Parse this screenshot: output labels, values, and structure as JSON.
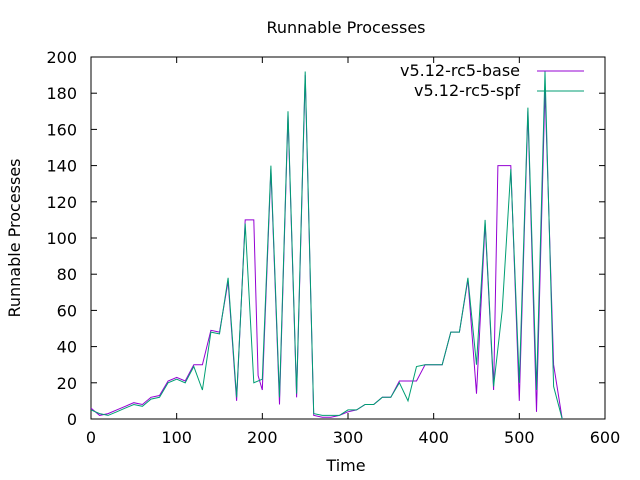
{
  "chart_data": {
    "type": "line",
    "title": "Runnable Processes",
    "xlabel": "Time",
    "ylabel": "Runnable Processes",
    "xlim": [
      0,
      600
    ],
    "ylim": [
      0,
      200
    ],
    "xticks": [
      0,
      100,
      200,
      300,
      400,
      500,
      600
    ],
    "yticks": [
      0,
      20,
      40,
      60,
      80,
      100,
      120,
      140,
      160,
      180,
      200
    ],
    "grid": false,
    "legend_position": "top-right",
    "series": [
      {
        "name": "v5.12-rc5-base",
        "color": "#9400d3",
        "points": [
          [
            0,
            6
          ],
          [
            10,
            2
          ],
          [
            20,
            3
          ],
          [
            30,
            5
          ],
          [
            40,
            7
          ],
          [
            50,
            9
          ],
          [
            60,
            8
          ],
          [
            70,
            12
          ],
          [
            80,
            13
          ],
          [
            90,
            21
          ],
          [
            100,
            23
          ],
          [
            110,
            21
          ],
          [
            120,
            30
          ],
          [
            130,
            30
          ],
          [
            140,
            49
          ],
          [
            150,
            48
          ],
          [
            160,
            76
          ],
          [
            170,
            10
          ],
          [
            180,
            110
          ],
          [
            190,
            110
          ],
          [
            195,
            24
          ],
          [
            200,
            16
          ],
          [
            210,
            138
          ],
          [
            220,
            8
          ],
          [
            230,
            168
          ],
          [
            240,
            12
          ],
          [
            250,
            190
          ],
          [
            260,
            2
          ],
          [
            270,
            1
          ],
          [
            280,
            1
          ],
          [
            290,
            2
          ],
          [
            300,
            4
          ],
          [
            310,
            5
          ],
          [
            320,
            8
          ],
          [
            330,
            8
          ],
          [
            340,
            12
          ],
          [
            350,
            12
          ],
          [
            360,
            21
          ],
          [
            370,
            21
          ],
          [
            380,
            21
          ],
          [
            390,
            30
          ],
          [
            400,
            30
          ],
          [
            410,
            30
          ],
          [
            420,
            48
          ],
          [
            430,
            48
          ],
          [
            440,
            77
          ],
          [
            450,
            14
          ],
          [
            460,
            108
          ],
          [
            470,
            16
          ],
          [
            475,
            140
          ],
          [
            480,
            140
          ],
          [
            490,
            140
          ],
          [
            500,
            10
          ],
          [
            510,
            170
          ],
          [
            520,
            4
          ],
          [
            530,
            182
          ],
          [
            540,
            30
          ],
          [
            550,
            0
          ]
        ]
      },
      {
        "name": "v5.12-rc5-spf",
        "color": "#009e73",
        "points": [
          [
            0,
            5
          ],
          [
            10,
            3
          ],
          [
            20,
            2
          ],
          [
            30,
            4
          ],
          [
            40,
            6
          ],
          [
            50,
            8
          ],
          [
            60,
            7
          ],
          [
            70,
            11
          ],
          [
            80,
            12
          ],
          [
            90,
            20
          ],
          [
            100,
            22
          ],
          [
            110,
            20
          ],
          [
            120,
            29
          ],
          [
            130,
            16
          ],
          [
            140,
            48
          ],
          [
            150,
            47
          ],
          [
            160,
            78
          ],
          [
            170,
            12
          ],
          [
            180,
            108
          ],
          [
            190,
            20
          ],
          [
            200,
            22
          ],
          [
            210,
            140
          ],
          [
            220,
            12
          ],
          [
            230,
            170
          ],
          [
            240,
            14
          ],
          [
            250,
            192
          ],
          [
            260,
            3
          ],
          [
            270,
            2
          ],
          [
            280,
            2
          ],
          [
            290,
            2
          ],
          [
            300,
            5
          ],
          [
            310,
            5
          ],
          [
            320,
            8
          ],
          [
            330,
            8
          ],
          [
            340,
            12
          ],
          [
            350,
            12
          ],
          [
            360,
            20
          ],
          [
            370,
            10
          ],
          [
            380,
            29
          ],
          [
            390,
            30
          ],
          [
            400,
            30
          ],
          [
            410,
            30
          ],
          [
            420,
            48
          ],
          [
            430,
            48
          ],
          [
            440,
            78
          ],
          [
            450,
            30
          ],
          [
            460,
            110
          ],
          [
            470,
            18
          ],
          [
            480,
            60
          ],
          [
            490,
            138
          ],
          [
            500,
            20
          ],
          [
            510,
            172
          ],
          [
            520,
            16
          ],
          [
            530,
            192
          ],
          [
            540,
            18
          ],
          [
            550,
            0
          ]
        ]
      }
    ]
  }
}
